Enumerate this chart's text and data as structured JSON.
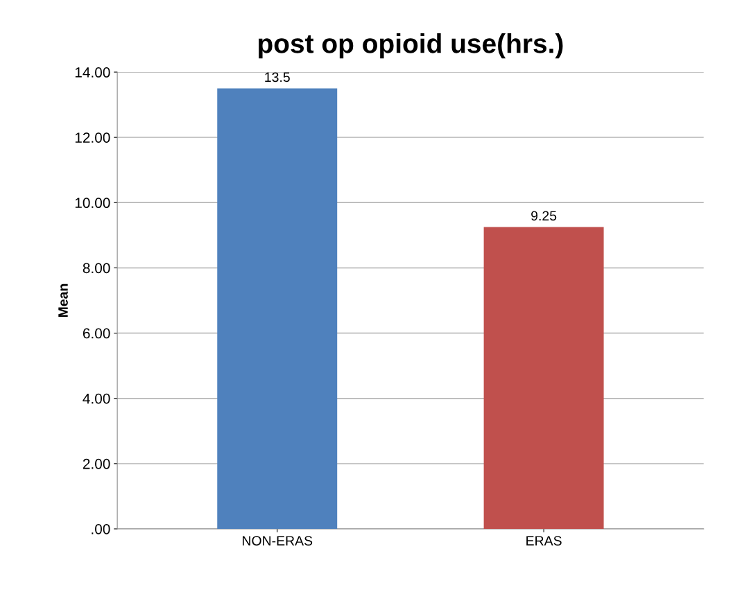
{
  "chart_data": {
    "type": "bar",
    "title": "post op opioid use(hrs.)",
    "ylabel": "Mean",
    "categories": [
      "NON-ERAS",
      "ERAS"
    ],
    "values": [
      13.5,
      9.25
    ],
    "colors": [
      "#4f81bd",
      "#c0504d"
    ],
    "data_labels": true,
    "ylim": [
      0,
      14
    ],
    "yticks": [
      {
        "value": 0,
        "label": ".00"
      },
      {
        "value": 2,
        "label": "2.00"
      },
      {
        "value": 4,
        "label": "4.00"
      },
      {
        "value": 6,
        "label": "6.00"
      },
      {
        "value": 8,
        "label": "8.00"
      },
      {
        "value": 10,
        "label": "10.00"
      },
      {
        "value": 12,
        "label": "12.00"
      },
      {
        "value": 14,
        "label": "14.00"
      }
    ],
    "grid": "y"
  }
}
